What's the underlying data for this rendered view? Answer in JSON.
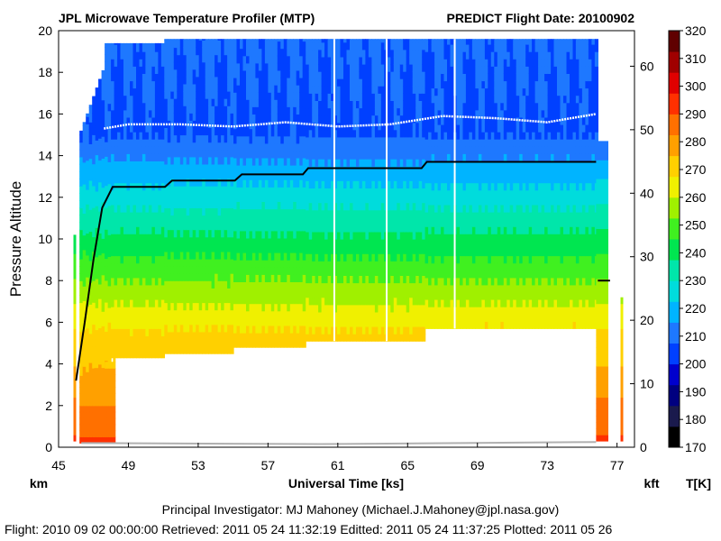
{
  "header": {
    "title": "JPL Microwave Temperature Profiler (MTP)",
    "project_date": "PREDICT  Flight Date: 20100902"
  },
  "axes": {
    "ylabel": "Pressure Altitude",
    "xlabel": "Universal Time [ks]",
    "km_label": "km",
    "kft_label": "kft",
    "colorbar_label": "T[K]"
  },
  "footer": {
    "investigator": "Principal Investigator: MJ Mahoney (Michael.J.Mahoney@jpl.nasa.gov)",
    "timestamps": "Flight: 2010 09 02 00:00:00   Retrieved: 2011 05 24 11:32:19   Editted: 2011 05 24 11:37:25   Plotted: 2011 05 26"
  },
  "chart_data": {
    "type": "heatmap",
    "title": "JPL Microwave Temperature Profiler (MTP)",
    "subtitle": "PREDICT  Flight Date: 20100902",
    "xlabel": "Universal Time [ks]",
    "ylabel": "Pressure Altitude",
    "xlim": [
      45,
      78
    ],
    "ylim_km": [
      0,
      20
    ],
    "ylim_kft": [
      0,
      65.6
    ],
    "x_ticks": [
      45,
      49,
      53,
      57,
      61,
      65,
      69,
      73,
      77
    ],
    "y_ticks_km": [
      0,
      2,
      4,
      6,
      8,
      10,
      12,
      14,
      16,
      18,
      20
    ],
    "y_ticks_kft": [
      0,
      10,
      20,
      30,
      40,
      50,
      60
    ],
    "colorbar": {
      "label": "T[K]",
      "min": 170,
      "max": 320,
      "ticks": [
        170,
        180,
        190,
        200,
        210,
        220,
        230,
        240,
        250,
        260,
        270,
        280,
        290,
        300,
        310,
        320
      ],
      "colors": [
        "#000000",
        "#1a1a4d",
        "#000080",
        "#0000cd",
        "#0040ff",
        "#1e78ff",
        "#00b4ff",
        "#00dcdc",
        "#00e6aa",
        "#00e650",
        "#40f020",
        "#a0f000",
        "#f0f000",
        "#ffd000",
        "#ffa000",
        "#ff7000",
        "#ff3000",
        "#e00000",
        "#a00000",
        "#600000"
      ]
    },
    "aircraft_altitude_km": [
      {
        "x": 46.0,
        "y": 3.2
      },
      {
        "x": 46.5,
        "y": 6.0
      },
      {
        "x": 47.0,
        "y": 9.0
      },
      {
        "x": 47.5,
        "y": 11.5
      },
      {
        "x": 48.1,
        "y": 12.5
      },
      {
        "x": 51.1,
        "y": 12.5
      },
      {
        "x": 51.5,
        "y": 12.8
      },
      {
        "x": 55.1,
        "y": 12.8
      },
      {
        "x": 55.5,
        "y": 13.1
      },
      {
        "x": 59.0,
        "y": 13.1
      },
      {
        "x": 59.3,
        "y": 13.4
      },
      {
        "x": 65.8,
        "y": 13.4
      },
      {
        "x": 66.1,
        "y": 13.7
      },
      {
        "x": 75.8,
        "y": 13.7
      }
    ],
    "tropopause_km": [
      {
        "x": 47.6,
        "y": 15.3
      },
      {
        "x": 49,
        "y": 15.5
      },
      {
        "x": 52,
        "y": 15.5
      },
      {
        "x": 55,
        "y": 15.4
      },
      {
        "x": 58,
        "y": 15.6
      },
      {
        "x": 61,
        "y": 15.4
      },
      {
        "x": 64,
        "y": 15.5
      },
      {
        "x": 67,
        "y": 15.9
      },
      {
        "x": 70,
        "y": 15.8
      },
      {
        "x": 73,
        "y": 15.6
      },
      {
        "x": 75.8,
        "y": 16.0
      }
    ]
  }
}
